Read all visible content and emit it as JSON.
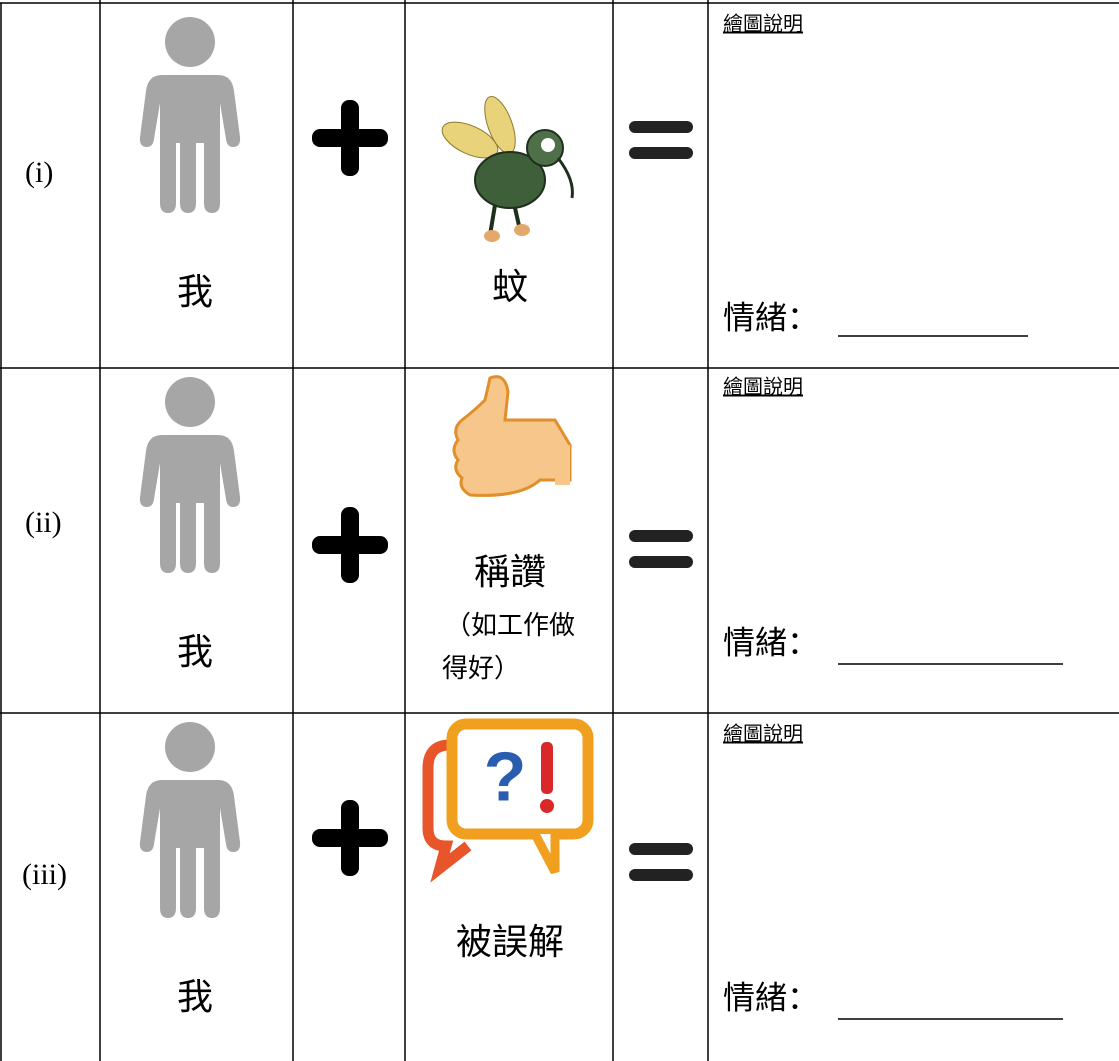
{
  "rows": [
    {
      "label": "(i)",
      "person": "我",
      "item": "蚊",
      "caption": "繪圖說明",
      "emotion": "情緒："
    },
    {
      "label": "(ii)",
      "person": "我",
      "item": "稱讚",
      "item_note": [
        "（如工作做",
        "得好）"
      ],
      "caption": "繪圖說明",
      "emotion": "情緒："
    },
    {
      "label": "(iii)",
      "person": "我",
      "item": "被誤解",
      "caption": "繪圖說明",
      "emotion": "情緒："
    }
  ]
}
